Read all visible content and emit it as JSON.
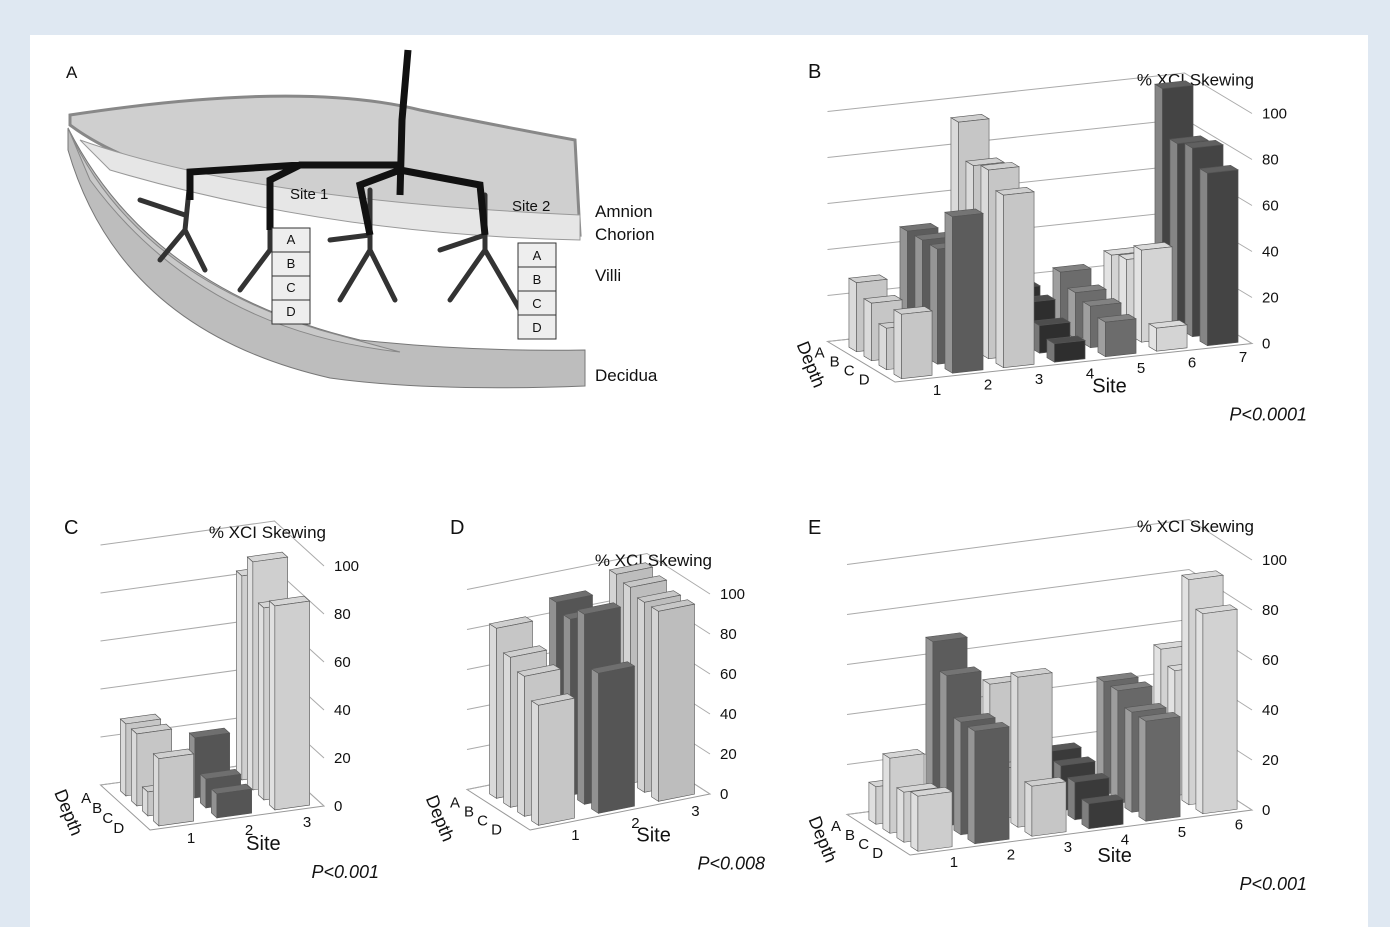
{
  "diagram": {
    "panel_label": "A",
    "labels": {
      "site1": "Site 1",
      "site2": "Site 2",
      "amnion": "Amnion",
      "chorion": "Chorion",
      "villi": "Villi",
      "decidua": "Decidua"
    },
    "site1_segments": [
      "A",
      "B",
      "C",
      "D"
    ],
    "site2_segments": [
      "A",
      "B",
      "C",
      "D"
    ]
  },
  "chart_data": [
    {
      "type": "bar3d",
      "panel_label": "B",
      "y_label": "% XCI Skewing",
      "x_label": "Site",
      "depth_label": "Depth",
      "p_value": "P<0.0001",
      "categories": [
        "1",
        "2",
        "3",
        "4",
        "5",
        "6",
        "7"
      ],
      "colors": [
        "#c6c6c6",
        "#5c5c5c",
        "#c6c6c6",
        "#2e2e2e",
        "#6c6c6c",
        "#d4d4d4",
        "#444444"
      ],
      "series": [
        {
          "name": "A",
          "values": [
            30,
            50,
            95,
            20,
            25,
            30,
            100
          ]
        },
        {
          "name": "B",
          "values": [
            25,
            50,
            80,
            18,
            20,
            32,
            80
          ]
        },
        {
          "name": "C",
          "values": [
            18,
            50,
            82,
            12,
            18,
            40,
            82
          ]
        },
        {
          "name": "D",
          "values": [
            28,
            68,
            75,
            8,
            15,
            10,
            75
          ]
        }
      ],
      "ylim": [
        0,
        100
      ],
      "yticks": [
        0,
        20,
        40,
        60,
        80,
        100
      ]
    },
    {
      "type": "bar3d",
      "panel_label": "C",
      "y_label": "% XCI Skewing",
      "x_label": "Site",
      "depth_label": "Depth",
      "p_value": "P<0.001",
      "categories": [
        "1",
        "2",
        "3"
      ],
      "colors": [
        "#c6c6c6",
        "#555555",
        "#cfcfcf"
      ],
      "series": [
        {
          "name": "A",
          "values": [
            30,
            12,
            85
          ]
        },
        {
          "name": "B",
          "values": [
            30,
            25,
            95
          ]
        },
        {
          "name": "C",
          "values": [
            10,
            12,
            80
          ]
        },
        {
          "name": "D",
          "values": [
            28,
            10,
            85
          ]
        }
      ],
      "ylim": [
        0,
        100
      ],
      "yticks": [
        0,
        20,
        40,
        60,
        80,
        100
      ]
    },
    {
      "type": "bar3d",
      "panel_label": "D",
      "y_label": "% XCI Skewing",
      "x_label": "Site",
      "depth_label": "Depth",
      "p_value": "P<0.008",
      "categories": [
        "1",
        "2",
        "3"
      ],
      "colors": [
        "#c6c6c6",
        "#555555",
        "#bdbdbd"
      ],
      "series": [
        {
          "name": "A",
          "values": [
            85,
            92,
            100
          ]
        },
        {
          "name": "B",
          "values": [
            75,
            88,
            98
          ]
        },
        {
          "name": "C",
          "values": [
            70,
            95,
            95
          ]
        },
        {
          "name": "D",
          "values": [
            60,
            70,
            95
          ]
        }
      ],
      "ylim": [
        0,
        100
      ],
      "yticks": [
        0,
        20,
        40,
        60,
        80,
        100
      ]
    },
    {
      "type": "bar3d",
      "panel_label": "E",
      "y_label": "% XCI Skewing",
      "x_label": "Site",
      "depth_label": "Depth",
      "p_value": "P<0.001",
      "categories": [
        "1",
        "2",
        "3",
        "4",
        "5",
        "6"
      ],
      "colors": [
        "#cdcdcd",
        "#5c5c5c",
        "#c6c6c6",
        "#3a3a3a",
        "#686868",
        "#d2d2d2"
      ],
      "series": [
        {
          "name": "A",
          "values": [
            15,
            70,
            50,
            20,
            45,
            55
          ]
        },
        {
          "name": "B",
          "values": [
            30,
            60,
            20,
            18,
            45,
            50
          ]
        },
        {
          "name": "C",
          "values": [
            20,
            45,
            60,
            15,
            40,
            90
          ]
        },
        {
          "name": "D",
          "values": [
            22,
            45,
            20,
            10,
            40,
            80
          ]
        }
      ],
      "ylim": [
        0,
        100
      ],
      "yticks": [
        0,
        20,
        40,
        60,
        80,
        100
      ]
    }
  ]
}
